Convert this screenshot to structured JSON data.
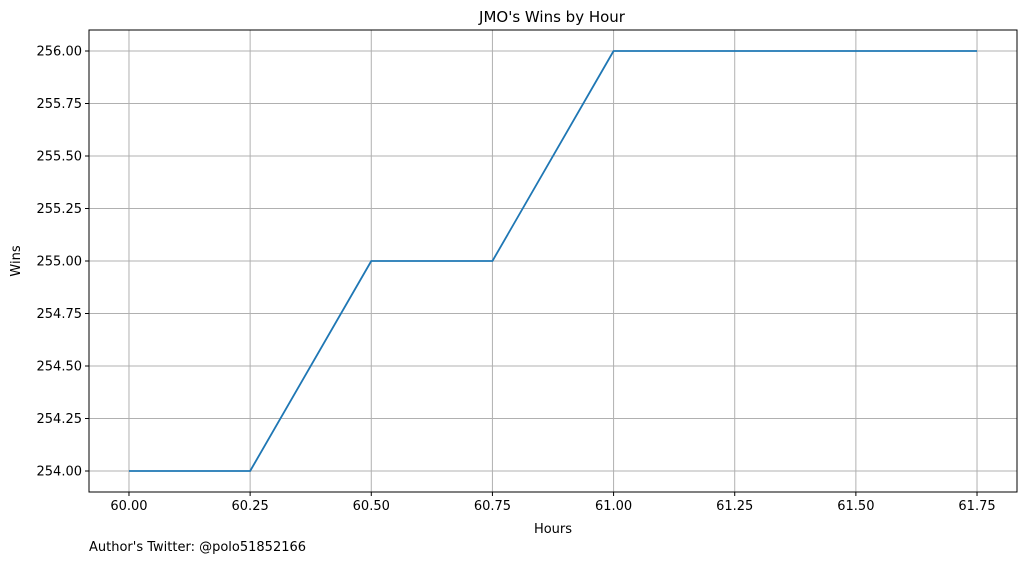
{
  "chart_data": {
    "type": "line",
    "title": "JMO's Wins by Hour",
    "xlabel": "Hours",
    "ylabel": "Wins",
    "x": [
      60.0,
      60.25,
      60.5,
      60.75,
      61.0,
      61.25,
      61.5,
      61.75
    ],
    "series": [
      {
        "values": [
          254,
          254,
          255,
          255,
          256,
          256,
          256,
          256
        ],
        "color": "#1f77b4"
      }
    ],
    "xticks": [
      "60.00",
      "60.25",
      "60.50",
      "60.75",
      "61.00",
      "61.25",
      "61.50",
      "61.75"
    ],
    "yticks": [
      "254.00",
      "254.25",
      "254.50",
      "254.75",
      "255.00",
      "255.25",
      "255.50",
      "255.75",
      "256.00"
    ],
    "xlim": [
      59.9175,
      61.8325
    ],
    "ylim": [
      253.9,
      256.1
    ],
    "grid": true
  },
  "footnote": "Author's Twitter: @polo51852166"
}
